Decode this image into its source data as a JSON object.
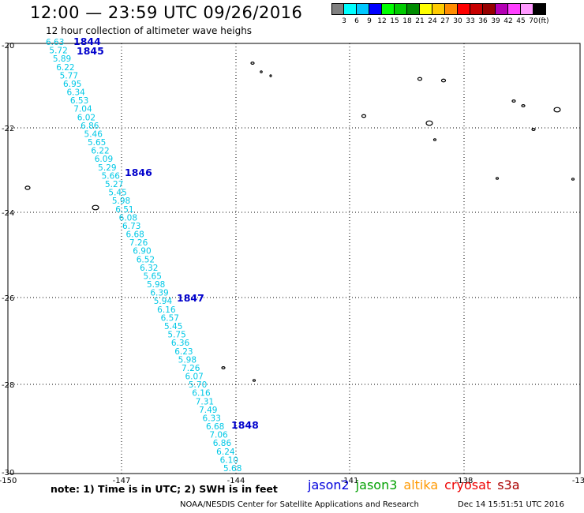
{
  "title": "12:00 — 23:59 UTC 09/26/2016",
  "subtitle": "12 hour collection of altimeter wave heighs",
  "legend": {
    "colors": [
      "#808080",
      "#00ffff",
      "#00c8ff",
      "#0000ff",
      "#00ff00",
      "#00cc00",
      "#008c00",
      "#ffff00",
      "#ffcc00",
      "#ff8c00",
      "#ff0000",
      "#c80000",
      "#960000",
      "#b400b4",
      "#ff40ff",
      "#ff99ff",
      "#000000"
    ],
    "labels": [
      "3",
      "6",
      "9",
      "12",
      "15",
      "18",
      "21",
      "24",
      "27",
      "30",
      "33",
      "36",
      "39",
      "42",
      "45",
      "70"
    ],
    "unit": "(ft)"
  },
  "note": "note: 1) Time is in UTC; 2) SWH is in feet",
  "satellites": [
    {
      "name": "jason2",
      "color": "#0000dd"
    },
    {
      "name": "jason3",
      "color": "#00a000"
    },
    {
      "name": "altika",
      "color": "#ff9900"
    },
    {
      "name": "cryosat",
      "color": "#ee0000"
    },
    {
      "name": "s3a",
      "color": "#aa0000"
    }
  ],
  "footer": "NOAA/NESDIS Center for Satellite Applications and Research",
  "footer_time": "Dec 14 15:51:51 UTC 2016",
  "chart_data": {
    "type": "scatter",
    "title": "12:00 — 23:59 UTC 09/26/2016",
    "subtitle": "12 hour collection of altimeter wave heighs",
    "x_ticks": [
      "-150",
      "-147",
      "-144",
      "-141",
      "-138",
      "-13"
    ],
    "y_ticks": [
      "-20",
      "-22",
      "-24",
      "-26",
      "-28",
      "-30"
    ],
    "xlim": [
      -150,
      -135
    ],
    "ylim": [
      -30,
      -20
    ],
    "grid": true,
    "swh_values": [
      "6.63",
      "5.72",
      "5.89",
      "6.22",
      "5.77",
      "6.95",
      "6.34",
      "6.53",
      "7.04",
      "6.02",
      "6.86",
      "5.46",
      "5.65",
      "6.22",
      "6.09",
      "5.29",
      "5.66",
      "5.27",
      "5.45",
      "5.98",
      "6.51",
      "6.08",
      "6.73",
      "6.68",
      "7.26",
      "6.90",
      "6.52",
      "6.32",
      "5.65",
      "5.98",
      "6.39",
      "5.94",
      "6.16",
      "6.57",
      "5.45",
      "5.75",
      "6.36",
      "6.23",
      "5.98",
      "7.26",
      "6.07",
      "5.70",
      "6.16",
      "7.31",
      "7.49",
      "6.33",
      "6.68",
      "7.06",
      "6.86",
      "6.24",
      "6.10",
      "5.68"
    ],
    "time_labels": [
      "1844",
      "1845",
      "1846",
      "1847",
      "1848"
    ]
  }
}
